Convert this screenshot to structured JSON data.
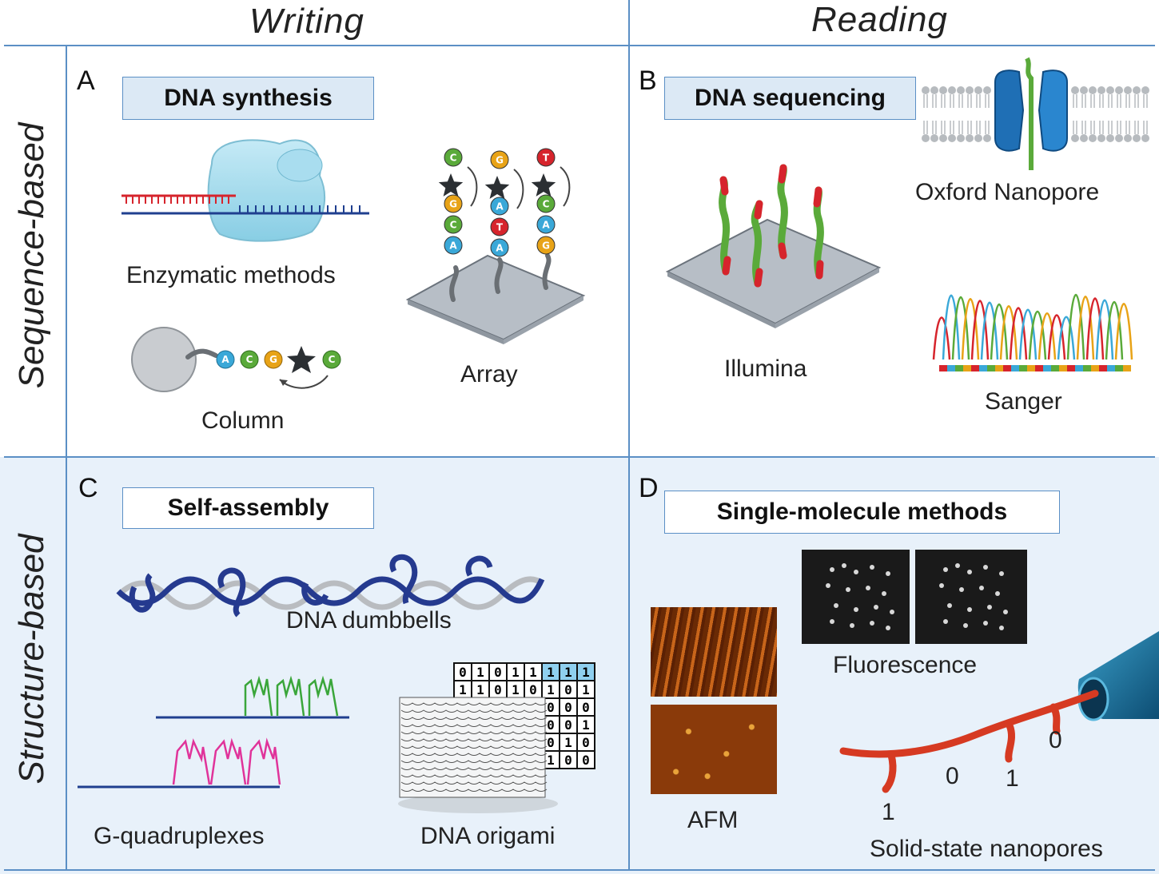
{
  "columns": {
    "writing": "Writing",
    "reading": "Reading"
  },
  "rows": {
    "sequence": "Sequence-based",
    "structure": "Structure-based"
  },
  "panels": {
    "A": {
      "letter": "A",
      "title": "DNA synthesis",
      "captions": {
        "enzymatic": "Enzymatic methods",
        "column": "Column",
        "array": "Array"
      }
    },
    "B": {
      "letter": "B",
      "title": "DNA sequencing",
      "captions": {
        "nanopore": "Oxford Nanopore",
        "illumina": "Illumina",
        "sanger": "Sanger"
      }
    },
    "C": {
      "letter": "C",
      "title": "Self-assembly",
      "captions": {
        "dumbbells": "DNA dumbbells",
        "gquad": "G-quadruplexes",
        "origami": "DNA origami"
      }
    },
    "D": {
      "letter": "D",
      "title": "Single-molecule methods",
      "captions": {
        "fluorescence": "Fluorescence",
        "afm": "AFM",
        "solid": "Solid-state nanopores"
      },
      "bits": [
        "1",
        "0",
        "1",
        "0"
      ]
    }
  },
  "array_strands": [
    [
      "C",
      "G",
      "C",
      "A"
    ],
    [
      "G",
      "A",
      "T",
      "A"
    ],
    [
      "T",
      "C",
      "A",
      "G"
    ]
  ],
  "column_bases": [
    "A",
    "C",
    "G",
    "C"
  ],
  "origami_grid": [
    [
      "0",
      "1",
      "0",
      "1",
      "1",
      "1",
      "1",
      "1"
    ],
    [
      "1",
      "1",
      "0",
      "1",
      "0",
      "1",
      "0",
      "1"
    ],
    [
      "",
      "",
      "",
      "",
      "",
      "0",
      "0",
      "0"
    ],
    [
      "",
      "",
      "",
      "",
      "",
      "0",
      "0",
      "1"
    ],
    [
      "",
      "",
      "",
      "",
      "",
      "0",
      "1",
      "0"
    ],
    [
      "",
      "",
      "",
      "",
      "",
      "1",
      "0",
      "0"
    ]
  ],
  "colors": {
    "grid_line": "#5b8fc5",
    "box_fill": "#dce9f5",
    "lower_bg": "#e8f1fa",
    "base_A": "#3aa8d8",
    "base_C": "#5aaa3a",
    "base_G": "#e8a317",
    "base_T": "#d6242c"
  }
}
